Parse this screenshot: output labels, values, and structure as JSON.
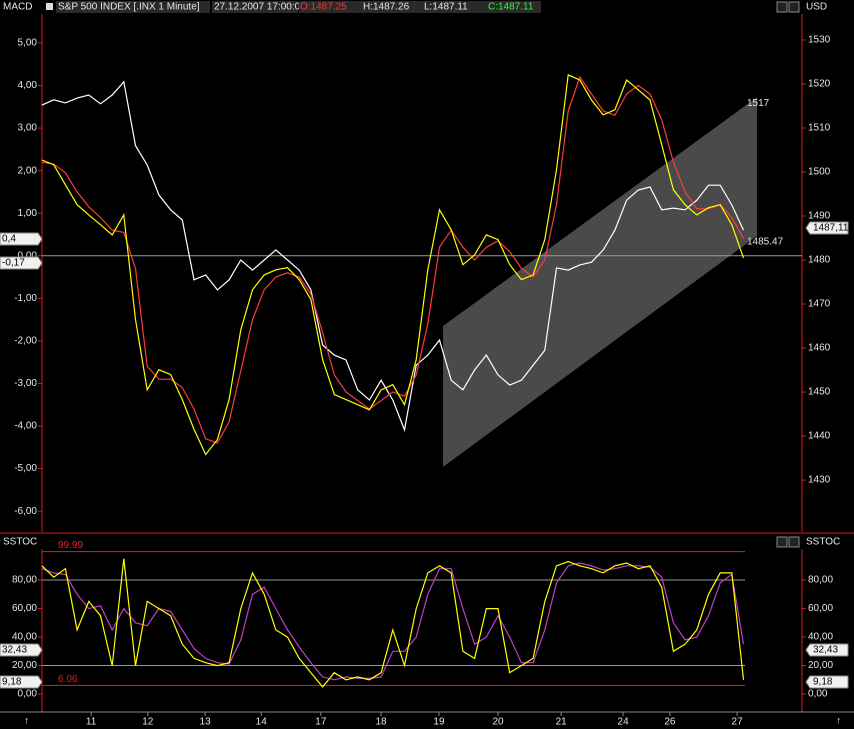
{
  "header": {
    "left_title": "MACD",
    "instrument": "S&P 500 INDEX [.INX  1 Minute]",
    "datetime": "27.12.2007 17:00:00",
    "open": "O:1487.25",
    "high": "H:1487.26",
    "low": "L:1487.11",
    "close": "C:1487.11",
    "right_unit": "USD"
  },
  "chart_data": [
    {
      "type": "line",
      "x": [
        0,
        0.2,
        0.4,
        0.6,
        0.8,
        1,
        1.2,
        1.4,
        1.6,
        1.8,
        2,
        2.2,
        2.4,
        2.6,
        2.8,
        3,
        3.2,
        3.4,
        3.6,
        3.8,
        4,
        4.2,
        4.4,
        4.6,
        4.8,
        5,
        5.2,
        5.4,
        5.6,
        5.8,
        6,
        6.2,
        6.4,
        6.6,
        6.8,
        7,
        7.2,
        7.4,
        7.6,
        7.8,
        8,
        8.2,
        8.4,
        8.6,
        8.8,
        9,
        9.2,
        9.4,
        9.6,
        9.8,
        10,
        10.2,
        10.4,
        10.6,
        10.8,
        11,
        11.2,
        11.4,
        11.6,
        11.8,
        12
      ],
      "xlim": [
        0,
        13
      ],
      "xticks": [
        {
          "value": 0.84,
          "label": "11"
        },
        {
          "value": 1.81,
          "label": "12"
        },
        {
          "value": 2.79,
          "label": "13"
        },
        {
          "value": 3.75,
          "label": "14"
        },
        {
          "value": 4.77,
          "label": "17"
        },
        {
          "value": 5.8,
          "label": "18"
        },
        {
          "value": 6.79,
          "label": "19"
        },
        {
          "value": 7.8,
          "label": "20"
        },
        {
          "value": 8.88,
          "label": "21"
        },
        {
          "value": 9.94,
          "label": "24"
        },
        {
          "value": 10.74,
          "label": "26"
        },
        {
          "value": 11.89,
          "label": "27"
        }
      ],
      "ylim": [
        -6.49,
        5.68
      ],
      "yticks": [
        {
          "value": 5,
          "label": "5,00"
        },
        {
          "value": 4,
          "label": "4,00"
        },
        {
          "value": 3,
          "label": "3,00"
        },
        {
          "value": 2,
          "label": "2,00"
        },
        {
          "value": 1,
          "label": "1,00"
        },
        {
          "value": 0,
          "label": "0,00"
        },
        {
          "value": -1,
          "label": "-1,00"
        },
        {
          "value": -2,
          "label": "-2,00"
        },
        {
          "value": -3,
          "label": "-3,00"
        },
        {
          "value": -4,
          "label": "-4,00"
        },
        {
          "value": -5,
          "label": "-5,00"
        },
        {
          "value": -6,
          "label": "-6,00"
        }
      ],
      "y2lim": [
        1418.2,
        1535.9
      ],
      "y2ticks": [
        1530,
        1520,
        1510,
        1500,
        1490,
        1480,
        1470,
        1460,
        1450,
        1440,
        1430
      ],
      "hlines": [
        {
          "value": 0,
          "color": "#9a9a9a"
        }
      ],
      "channel": {
        "x": [
          6.86,
          12.23
        ],
        "upper": [
          1465,
          1517
        ],
        "lower": [
          1433,
          1485.47
        ],
        "color": "#4a4a4a"
      },
      "series": [
        {
          "color": "#ffffff",
          "axis": "y2",
          "values": [
            1515.2,
            1516.4,
            1515.7,
            1516.8,
            1517.5,
            1515.5,
            1517.5,
            1520.5,
            1506,
            1501.6,
            1494.8,
            1491.4,
            1489.1,
            1475.5,
            1476.6,
            1473.2,
            1475.5,
            1480,
            1477.7,
            1480,
            1482.3,
            1480,
            1477.7,
            1473.2,
            1460.7,
            1458.4,
            1457.3,
            1450.5,
            1448.2,
            1452.7,
            1448.2,
            1441.4,
            1456.1,
            1458.4,
            1461.8,
            1452.7,
            1450.5,
            1455,
            1458.4,
            1453.9,
            1451.6,
            1452.7,
            1456.1,
            1459.5,
            1478.2,
            1477.7,
            1478.9,
            1479.5,
            1482.3,
            1486.8,
            1493.6,
            1495.9,
            1496.6,
            1491.4,
            1491.8,
            1491.4,
            1493.6,
            1497,
            1497,
            1492.5,
            1486.8
          ]
        },
        {
          "color": "#ff3b3b",
          "values": [
            2.2,
            2.15,
            1.95,
            1.5,
            1.15,
            0.9,
            0.6,
            0.55,
            -0.3,
            -2.6,
            -2.9,
            -2.9,
            -3.1,
            -3.6,
            -4.3,
            -4.4,
            -3.9,
            -2.7,
            -1.5,
            -0.8,
            -0.5,
            -0.4,
            -0.5,
            -0.9,
            -1.8,
            -2.8,
            -3.2,
            -3.4,
            -3.6,
            -3.4,
            -3.2,
            -3.3,
            -2.8,
            -1.6,
            0.2,
            0.6,
            0.2,
            -0.1,
            0.2,
            0.35,
            0.1,
            -0.3,
            -0.5,
            -0.1,
            1.2,
            3.4,
            4.2,
            3.8,
            3.4,
            3.3,
            3.8,
            4.0,
            3.8,
            3.2,
            2.2,
            1.5,
            1.1,
            1.1,
            1.2,
            0.9,
            0.4
          ]
        },
        {
          "color": "#ffff00",
          "values": [
            2.25,
            2.14,
            1.67,
            1.2,
            0.96,
            0.73,
            0.49,
            0.96,
            -1.5,
            -3.15,
            -2.68,
            -2.79,
            -3.38,
            -4.08,
            -4.67,
            -4.32,
            -3.38,
            -1.74,
            -0.8,
            -0.45,
            -0.33,
            -0.28,
            -0.56,
            -1.03,
            -2.44,
            -3.26,
            -3.38,
            -3.5,
            -3.62,
            -3.15,
            -3.03,
            -3.5,
            -2.44,
            -0.33,
            1.08,
            0.61,
            -0.21,
            0.02,
            0.49,
            0.38,
            -0.21,
            -0.56,
            -0.45,
            0.38,
            2.02,
            4.25,
            4.13,
            3.66,
            3.31,
            3.43,
            4.13,
            3.9,
            3.66,
            2.61,
            1.55,
            1.2,
            0.96,
            1.13,
            1.2,
            0.73,
            -0.05
          ]
        }
      ],
      "tags": {
        "left": [
          "0,4",
          "-0,17"
        ],
        "right": [
          "1487,11"
        ]
      }
    },
    {
      "type": "line",
      "title": "SSTOC",
      "x": [
        0,
        0.2,
        0.4,
        0.6,
        0.8,
        1,
        1.2,
        1.4,
        1.6,
        1.8,
        2,
        2.2,
        2.4,
        2.6,
        2.8,
        3,
        3.2,
        3.4,
        3.6,
        3.8,
        4,
        4.2,
        4.4,
        4.6,
        4.8,
        5,
        5.2,
        5.4,
        5.6,
        5.8,
        6,
        6.2,
        6.4,
        6.6,
        6.8,
        7,
        7.2,
        7.4,
        7.6,
        7.8,
        8,
        8.2,
        8.4,
        8.6,
        8.8,
        9,
        9.2,
        9.4,
        9.6,
        9.8,
        10,
        10.2,
        10.4,
        10.6,
        10.8,
        11,
        11.2,
        11.4,
        11.6,
        11.8,
        12
      ],
      "xlim": [
        0,
        13
      ],
      "ylim": [
        -12.6,
        101.8
      ],
      "yticks": [
        {
          "value": 80,
          "label": "80,00"
        },
        {
          "value": 60,
          "label": "60,00"
        },
        {
          "value": 40,
          "label": "40,00"
        },
        {
          "value": 20,
          "label": "20,00"
        },
        {
          "value": 0,
          "label": "0,00"
        }
      ],
      "hlines": [
        {
          "value": 99.99,
          "color": "#e02020"
        },
        {
          "value": 6.06,
          "color": "#e02020"
        },
        {
          "value": 80,
          "color": "#9a9a9a"
        },
        {
          "value": 20,
          "color": "#9a9a9a"
        }
      ],
      "series": [
        {
          "color": "#c040c0",
          "values": [
            88,
            85,
            84,
            70,
            60,
            62,
            45,
            60,
            50,
            48,
            60,
            58,
            45,
            32,
            25,
            22,
            21,
            38,
            70,
            75,
            60,
            45,
            33,
            22,
            12,
            10,
            12,
            11,
            11,
            12,
            30,
            30,
            40,
            70,
            88,
            88,
            60,
            35,
            40,
            55,
            40,
            22,
            22,
            45,
            78,
            90,
            92,
            90,
            87,
            88,
            90,
            90,
            89,
            82,
            50,
            38,
            40,
            55,
            78,
            84,
            35
          ]
        },
        {
          "color": "#ffff00",
          "values": [
            90,
            82,
            88,
            45,
            65,
            55,
            20,
            95,
            20,
            65,
            60,
            55,
            35,
            25,
            22,
            20,
            22,
            60,
            85,
            70,
            45,
            40,
            25,
            15,
            5,
            15,
            10,
            12,
            10,
            15,
            45,
            20,
            60,
            85,
            90,
            85,
            30,
            25,
            60,
            60,
            15,
            20,
            25,
            65,
            90,
            93,
            90,
            88,
            85,
            90,
            92,
            88,
            90,
            75,
            30,
            35,
            45,
            70,
            85,
            85,
            10
          ]
        }
      ],
      "tags": {
        "left": [
          "32,43",
          "9,18"
        ],
        "right": [
          "32,43",
          "9,18"
        ]
      }
    }
  ]
}
